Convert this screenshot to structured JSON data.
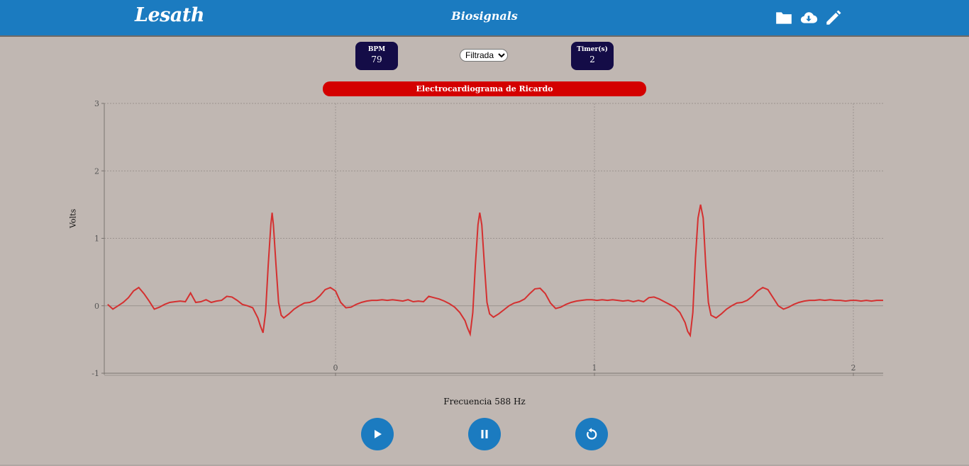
{
  "app": {
    "brand": "Lesath",
    "title": "Biosignals"
  },
  "nav_icons": [
    "folder-icon",
    "cloud-download-icon",
    "pencil-icon"
  ],
  "stats": {
    "bpm": {
      "label": "BPM",
      "value": "79"
    },
    "timer": {
      "label": "Timer(s)",
      "value": "2"
    }
  },
  "filter": {
    "selected": "Filtrada"
  },
  "colors": {
    "accent": "#1b7bc0",
    "title_bar": "#d40000",
    "stat_bg": "#140c47",
    "line": "#d43030",
    "background": "#c0b7b2"
  },
  "chart_data": {
    "type": "line",
    "title": "Electrocardiograma de Ricardo",
    "xlabel": "Frecuencia 588 Hz",
    "ylabel": "Volts",
    "ylim": [
      -1,
      3
    ],
    "xlim": [
      -0.88,
      2.12
    ],
    "x_ticks": [
      "0",
      "1",
      "2"
    ],
    "y_ticks": [
      "-1",
      "0",
      "1",
      "2",
      "3"
    ],
    "grid": true,
    "series": [
      {
        "points": [
          [
            -0.88,
            0.02
          ],
          [
            -0.86,
            -0.05
          ],
          [
            -0.84,
            0.0
          ],
          [
            -0.82,
            0.05
          ],
          [
            -0.8,
            0.12
          ],
          [
            -0.78,
            0.22
          ],
          [
            -0.76,
            0.27
          ],
          [
            -0.74,
            0.18
          ],
          [
            -0.72,
            0.07
          ],
          [
            -0.7,
            -0.05
          ],
          [
            -0.68,
            -0.02
          ],
          [
            -0.66,
            0.02
          ],
          [
            -0.64,
            0.05
          ],
          [
            -0.62,
            0.06
          ],
          [
            -0.6,
            0.07
          ],
          [
            -0.58,
            0.06
          ],
          [
            -0.56,
            0.19
          ],
          [
            -0.54,
            0.05
          ],
          [
            -0.52,
            0.06
          ],
          [
            -0.5,
            0.09
          ],
          [
            -0.48,
            0.05
          ],
          [
            -0.46,
            0.07
          ],
          [
            -0.44,
            0.08
          ],
          [
            -0.42,
            0.14
          ],
          [
            -0.4,
            0.13
          ],
          [
            -0.38,
            0.08
          ],
          [
            -0.36,
            0.02
          ],
          [
            -0.34,
            0.0
          ],
          [
            -0.32,
            -0.03
          ],
          [
            -0.3,
            -0.18
          ],
          [
            -0.29,
            -0.3
          ],
          [
            -0.28,
            -0.4
          ],
          [
            -0.27,
            -0.1
          ],
          [
            -0.26,
            0.6
          ],
          [
            -0.25,
            1.2
          ],
          [
            -0.245,
            1.38
          ],
          [
            -0.24,
            1.2
          ],
          [
            -0.23,
            0.6
          ],
          [
            -0.22,
            0.05
          ],
          [
            -0.21,
            -0.14
          ],
          [
            -0.2,
            -0.18
          ],
          [
            -0.18,
            -0.12
          ],
          [
            -0.16,
            -0.05
          ],
          [
            -0.14,
            0.0
          ],
          [
            -0.12,
            0.04
          ],
          [
            -0.1,
            0.05
          ],
          [
            -0.08,
            0.08
          ],
          [
            -0.06,
            0.15
          ],
          [
            -0.04,
            0.24
          ],
          [
            -0.02,
            0.27
          ],
          [
            0.0,
            0.22
          ],
          [
            0.02,
            0.05
          ],
          [
            0.04,
            -0.03
          ],
          [
            0.06,
            -0.02
          ],
          [
            0.08,
            0.02
          ],
          [
            0.1,
            0.05
          ],
          [
            0.12,
            0.07
          ],
          [
            0.14,
            0.08
          ],
          [
            0.16,
            0.08
          ],
          [
            0.18,
            0.09
          ],
          [
            0.2,
            0.08
          ],
          [
            0.22,
            0.09
          ],
          [
            0.24,
            0.08
          ],
          [
            0.26,
            0.07
          ],
          [
            0.28,
            0.09
          ],
          [
            0.3,
            0.06
          ],
          [
            0.32,
            0.07
          ],
          [
            0.34,
            0.06
          ],
          [
            0.36,
            0.14
          ],
          [
            0.38,
            0.12
          ],
          [
            0.4,
            0.1
          ],
          [
            0.42,
            0.07
          ],
          [
            0.44,
            0.03
          ],
          [
            0.46,
            -0.02
          ],
          [
            0.48,
            -0.1
          ],
          [
            0.5,
            -0.22
          ],
          [
            0.51,
            -0.33
          ],
          [
            0.52,
            -0.42
          ],
          [
            0.53,
            -0.1
          ],
          [
            0.54,
            0.6
          ],
          [
            0.55,
            1.2
          ],
          [
            0.557,
            1.38
          ],
          [
            0.565,
            1.2
          ],
          [
            0.575,
            0.6
          ],
          [
            0.585,
            0.05
          ],
          [
            0.595,
            -0.12
          ],
          [
            0.61,
            -0.17
          ],
          [
            0.63,
            -0.12
          ],
          [
            0.65,
            -0.06
          ],
          [
            0.67,
            0.0
          ],
          [
            0.69,
            0.04
          ],
          [
            0.71,
            0.06
          ],
          [
            0.73,
            0.1
          ],
          [
            0.75,
            0.18
          ],
          [
            0.77,
            0.25
          ],
          [
            0.79,
            0.26
          ],
          [
            0.81,
            0.18
          ],
          [
            0.83,
            0.04
          ],
          [
            0.85,
            -0.04
          ],
          [
            0.87,
            -0.02
          ],
          [
            0.89,
            0.02
          ],
          [
            0.91,
            0.05
          ],
          [
            0.93,
            0.07
          ],
          [
            0.95,
            0.08
          ],
          [
            0.97,
            0.09
          ],
          [
            0.99,
            0.09
          ],
          [
            1.01,
            0.08
          ],
          [
            1.03,
            0.09
          ],
          [
            1.05,
            0.08
          ],
          [
            1.07,
            0.09
          ],
          [
            1.09,
            0.08
          ],
          [
            1.11,
            0.07
          ],
          [
            1.13,
            0.08
          ],
          [
            1.15,
            0.06
          ],
          [
            1.17,
            0.08
          ],
          [
            1.19,
            0.06
          ],
          [
            1.21,
            0.12
          ],
          [
            1.23,
            0.13
          ],
          [
            1.25,
            0.1
          ],
          [
            1.27,
            0.06
          ],
          [
            1.29,
            0.02
          ],
          [
            1.31,
            -0.02
          ],
          [
            1.33,
            -0.1
          ],
          [
            1.35,
            -0.25
          ],
          [
            1.36,
            -0.38
          ],
          [
            1.37,
            -0.44
          ],
          [
            1.38,
            -0.1
          ],
          [
            1.39,
            0.7
          ],
          [
            1.4,
            1.3
          ],
          [
            1.41,
            1.5
          ],
          [
            1.42,
            1.3
          ],
          [
            1.43,
            0.6
          ],
          [
            1.44,
            0.05
          ],
          [
            1.45,
            -0.14
          ],
          [
            1.47,
            -0.18
          ],
          [
            1.49,
            -0.12
          ],
          [
            1.51,
            -0.05
          ],
          [
            1.53,
            0.0
          ],
          [
            1.55,
            0.04
          ],
          [
            1.57,
            0.05
          ],
          [
            1.59,
            0.08
          ],
          [
            1.61,
            0.14
          ],
          [
            1.63,
            0.22
          ],
          [
            1.65,
            0.27
          ],
          [
            1.67,
            0.24
          ],
          [
            1.69,
            0.12
          ],
          [
            1.71,
            0.0
          ],
          [
            1.73,
            -0.05
          ],
          [
            1.75,
            -0.02
          ],
          [
            1.77,
            0.02
          ],
          [
            1.79,
            0.05
          ],
          [
            1.81,
            0.07
          ],
          [
            1.83,
            0.08
          ],
          [
            1.85,
            0.08
          ],
          [
            1.87,
            0.09
          ],
          [
            1.89,
            0.08
          ],
          [
            1.91,
            0.09
          ],
          [
            1.93,
            0.08
          ],
          [
            1.95,
            0.08
          ],
          [
            1.97,
            0.07
          ],
          [
            1.99,
            0.08
          ],
          [
            2.01,
            0.08
          ],
          [
            2.03,
            0.07
          ],
          [
            2.05,
            0.08
          ],
          [
            2.07,
            0.07
          ],
          [
            2.09,
            0.08
          ],
          [
            2.12,
            0.08
          ]
        ]
      }
    ]
  }
}
